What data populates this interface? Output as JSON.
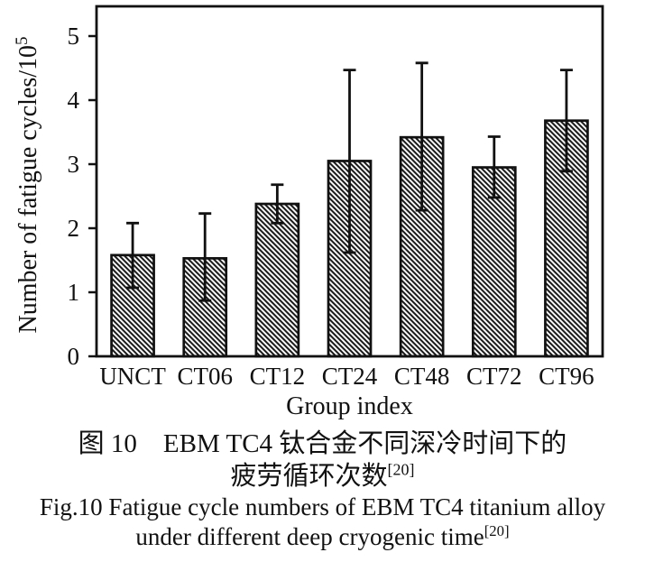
{
  "colors": {
    "ink": "#111111",
    "background": "#ffffff"
  },
  "chart_data": {
    "type": "bar",
    "categories": [
      "UNCT",
      "CT06",
      "CT12",
      "CT24",
      "CT48",
      "CT72",
      "CT96"
    ],
    "values": [
      1.58,
      1.53,
      2.38,
      3.05,
      3.42,
      2.95,
      3.68
    ],
    "error_up": [
      0.5,
      0.7,
      0.3,
      1.42,
      1.16,
      0.48,
      0.79
    ],
    "error_down": [
      0.51,
      0.66,
      0.3,
      1.43,
      1.14,
      0.47,
      0.79
    ],
    "xlabel": "Group index",
    "ylabel_main": "Number of fatigue cycles/10",
    "ylabel_sup": "5",
    "yticks": [
      0,
      1,
      2,
      3,
      4,
      5
    ],
    "ylim": [
      0,
      5.46
    ],
    "grid": false,
    "legend": "none",
    "bar_style": "white bars with black diagonal backslash hatching and black outline",
    "error_bar_style": "black stems with end caps, drawn over bars"
  },
  "caption": {
    "zh_line1": "图 10 EBM TC4 钛合金不同深冷时间下的",
    "zh_line2_text": "疲劳循环次数",
    "zh_line2_ref": "[20]",
    "en_line1": "Fig.10 Fatigue cycle numbers of EBM TC4 titanium alloy",
    "en_line2_text": "under different deep cryogenic time",
    "en_line2_ref": "[20]"
  }
}
